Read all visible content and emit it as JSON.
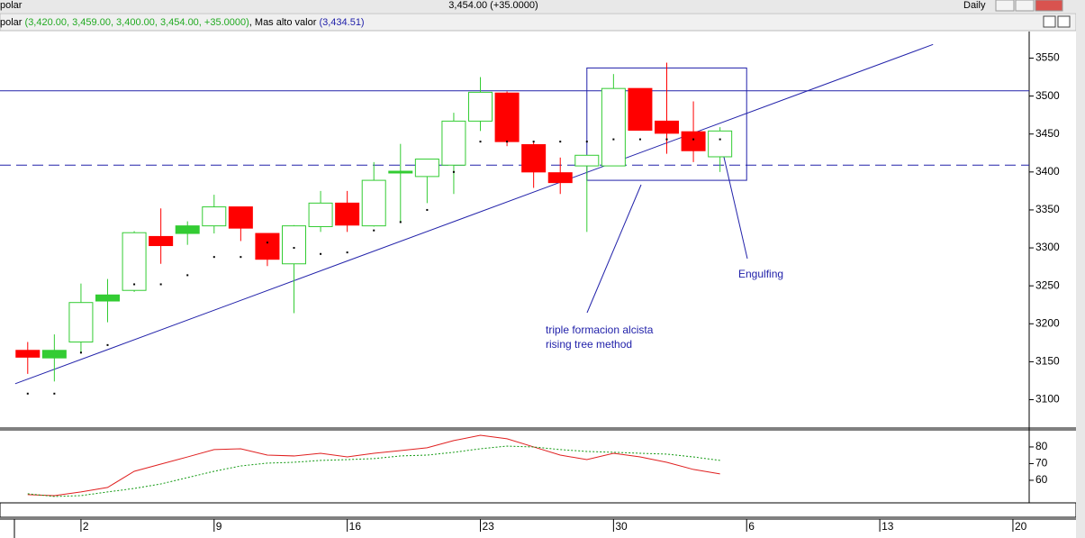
{
  "window": {
    "symbol": "polar",
    "quote": "3,454.00 (+35.0000)",
    "period": "Daily"
  },
  "chart_data": [
    {
      "type": "candlestick",
      "legend_symbol": "polar",
      "legend_ohlc": "(3,420.00, 3,459.00, 3,400.00, 3,454.00, +35.0000)",
      "legend_ma": "Mas  alto valor",
      "legend_ma_value": "(3,434.51)",
      "x": [
        0,
        1,
        2,
        3,
        4,
        5,
        6,
        7,
        8,
        9,
        10,
        11,
        12,
        13,
        14,
        15,
        16,
        17,
        18,
        19,
        20,
        21,
        22,
        23,
        24,
        25,
        26
      ],
      "open": [
        3165,
        3155,
        3176,
        3230,
        3244,
        3315,
        3319,
        3329,
        3354,
        3319,
        3279,
        3328,
        3359,
        3329,
        3399,
        3394,
        3409,
        3467,
        3504,
        3436,
        3399,
        3408,
        3408,
        3510,
        3467,
        3453,
        3420
      ],
      "high": [
        3176,
        3186,
        3253,
        3259,
        3322,
        3352,
        3335,
        3370,
        3354,
        3319,
        3330,
        3375,
        3375,
        3413,
        3437,
        3417,
        3478,
        3525,
        3506,
        3440,
        3419,
        3422,
        3529,
        3510,
        3544,
        3493,
        3459
      ],
      "low": [
        3134,
        3124,
        3162,
        3202,
        3242,
        3279,
        3304,
        3319,
        3309,
        3276,
        3214,
        3321,
        3321,
        3328,
        3333,
        3359,
        3371,
        3454,
        3434,
        3379,
        3371,
        3321,
        3408,
        3455,
        3424,
        3413,
        3400
      ],
      "close": [
        3156,
        3165,
        3228,
        3238,
        3320,
        3303,
        3329,
        3354,
        3326,
        3285,
        3329,
        3359,
        3330,
        3389,
        3401,
        3417,
        3467,
        3505,
        3440,
        3400,
        3386,
        3422,
        3510,
        3455,
        3451,
        3428,
        3454
      ],
      "markers": [
        3108,
        3108,
        3162,
        3172,
        3252,
        3252,
        3264,
        3288,
        3288,
        3307,
        3300,
        3292,
        3294,
        3323,
        3334,
        3350,
        3400,
        3440,
        3440,
        3440,
        3440,
        3440,
        3443,
        3443,
        3443,
        3443,
        3443
      ],
      "up_color": "#33cc33",
      "down_color": "#ff0000",
      "hlines": [
        {
          "value": 3507,
          "style": "solid"
        },
        {
          "value": 3409,
          "style": "dashed"
        }
      ],
      "trendline": {
        "x": [
          -0.47,
          34.0
        ],
        "y": [
          3121,
          3568
        ]
      },
      "box": {
        "x": [
          21,
          27
        ],
        "y": [
          3389,
          3537
        ]
      },
      "annotations": [
        "triple formacion alcista",
        "rising tree method",
        "Engulfing"
      ],
      "xlim": [
        -0.5,
        39.2
      ],
      "xticks": [
        {
          "value": 2,
          "label": "2"
        },
        {
          "value": 7,
          "label": "9"
        },
        {
          "value": 12,
          "label": "16"
        },
        {
          "value": 17,
          "label": "23"
        },
        {
          "value": 22,
          "label": "30"
        },
        {
          "value": 27,
          "label": "6"
        },
        {
          "value": 32,
          "label": "13"
        },
        {
          "value": 37,
          "label": "20"
        }
      ],
      "ylim": [
        3065,
        3585
      ],
      "yticks": [
        3100,
        3150,
        3200,
        3250,
        3300,
        3350,
        3400,
        3450,
        3500,
        3550
      ]
    },
    {
      "type": "line",
      "x": [
        0,
        1,
        2,
        3,
        4,
        5,
        6,
        7,
        8,
        9,
        10,
        11,
        12,
        13,
        14,
        15,
        16,
        17,
        18,
        19,
        20,
        21,
        22,
        23,
        24,
        25,
        26
      ],
      "series": [
        {
          "color": "#e02020",
          "dashed": false,
          "values": [
            51.4,
            50.8,
            53,
            55.7,
            65.4,
            69.7,
            74,
            78.4,
            78.9,
            75.1,
            74.6,
            76.2,
            74,
            76.2,
            77.8,
            79.5,
            83.8,
            87,
            84.9,
            80,
            75.1,
            72.4,
            76.2,
            74,
            70.8,
            66.5,
            63.8
          ]
        },
        {
          "color": "#119911",
          "dashed": true,
          "values": [
            51.9,
            50.3,
            50.8,
            53,
            55.1,
            57.8,
            61.6,
            65.4,
            68.6,
            70.3,
            70.8,
            71.9,
            72.4,
            73,
            74.6,
            75.1,
            76.8,
            78.9,
            80.5,
            80,
            78.4,
            77.3,
            76.8,
            76.2,
            75.7,
            74,
            71.9
          ]
        }
      ],
      "xlim": [
        -0.5,
        39.2
      ],
      "ylim": [
        47,
        89.7
      ],
      "yticks": [
        60,
        70,
        80
      ]
    }
  ]
}
